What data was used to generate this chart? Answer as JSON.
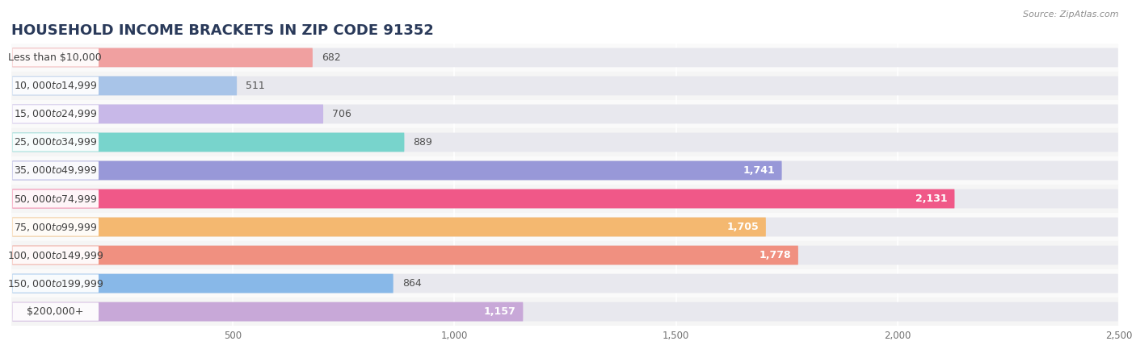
{
  "title": "HOUSEHOLD INCOME BRACKETS IN ZIP CODE 91352",
  "source": "Source: ZipAtlas.com",
  "categories": [
    "Less than $10,000",
    "$10,000 to $14,999",
    "$15,000 to $24,999",
    "$25,000 to $34,999",
    "$35,000 to $49,999",
    "$50,000 to $74,999",
    "$75,000 to $99,999",
    "$100,000 to $149,999",
    "$150,000 to $199,999",
    "$200,000+"
  ],
  "values": [
    682,
    511,
    706,
    889,
    1741,
    2131,
    1705,
    1778,
    864,
    1157
  ],
  "bar_colors": [
    "#f0a0a0",
    "#a8c4e8",
    "#c8b8e8",
    "#78d4cc",
    "#9898d8",
    "#f05888",
    "#f4b870",
    "#f09080",
    "#88b8e8",
    "#c8a8d8"
  ],
  "background_color": "#ffffff",
  "bar_bg_color": "#f0f0f0",
  "row_bg_even": "#fafafa",
  "row_bg_odd": "#f5f5f5",
  "xlim_max": 2500,
  "xticks": [
    500,
    1000,
    1500,
    2000,
    2500
  ],
  "xtick_labels": [
    "500",
    "1,000",
    "1,500",
    "2,000",
    "2,500"
  ],
  "title_color": "#2a3a5a",
  "title_fontsize": 13,
  "value_fontsize": 9,
  "label_fontsize": 9,
  "source_fontsize": 8
}
